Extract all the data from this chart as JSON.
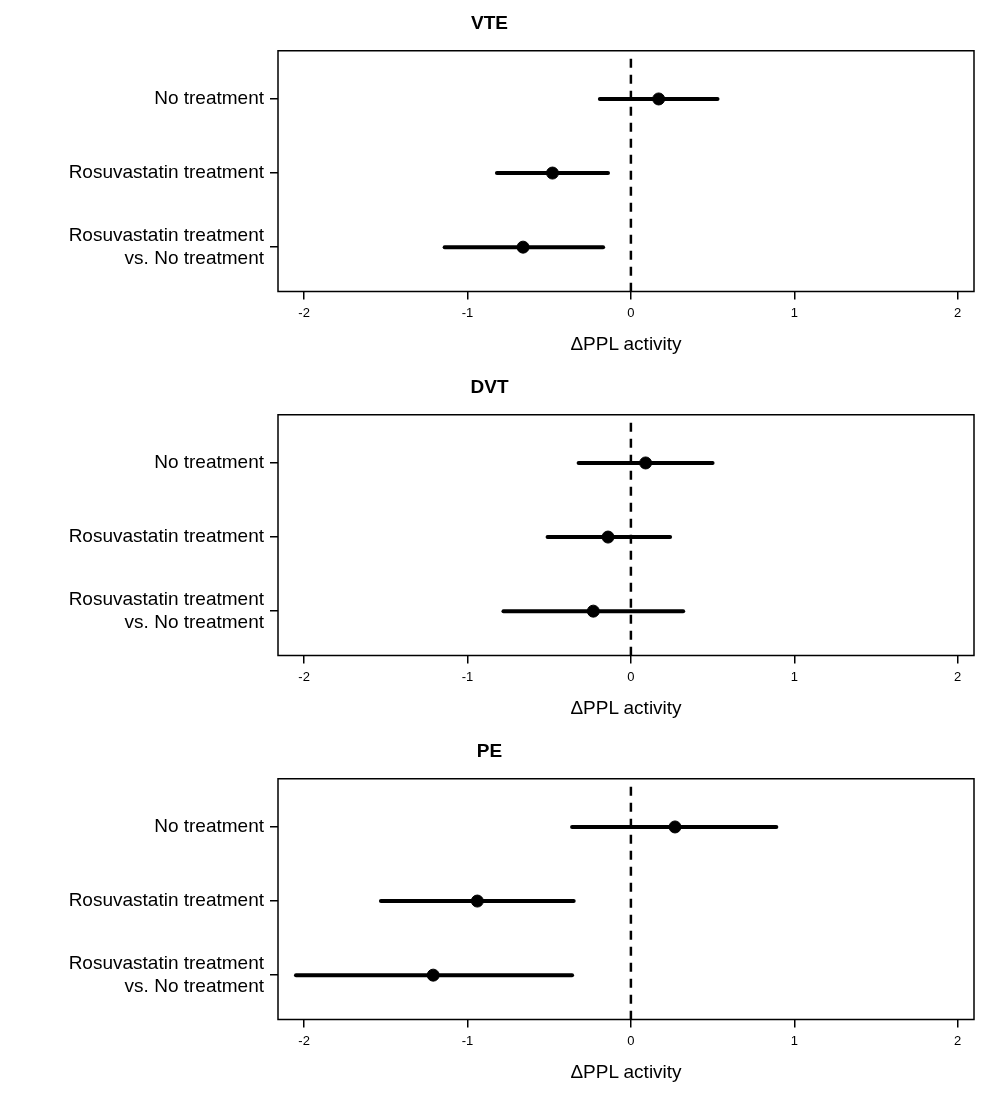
{
  "chart_data": [
    {
      "type": "scatter",
      "title": "VTE",
      "xlabel": "ΔPPL activity",
      "orientation": "horizontal",
      "categories": [
        "No treatment",
        "Rosuvastatin treatment",
        "Rosuvastatin treatment\nvs. No treatment"
      ],
      "color": "#000000",
      "marker": "circle",
      "values": [
        0.17,
        -0.48,
        -0.66
      ],
      "errors": [
        [
          -0.19,
          0.53
        ],
        [
          -0.82,
          -0.14
        ],
        [
          -1.14,
          -0.17
        ]
      ],
      "xlim": [
        -2.16,
        2.1
      ],
      "xticks": [
        -2,
        -1,
        0,
        1,
        2
      ],
      "grid": false,
      "legend": false,
      "ref_lines": [
        {
          "axis": "x",
          "value": 0,
          "line_style": "dashed",
          "color": "#000000"
        }
      ]
    },
    {
      "type": "scatter",
      "title": "DVT",
      "xlabel": "ΔPPL activity",
      "orientation": "horizontal",
      "categories": [
        "No treatment",
        "Rosuvastatin treatment",
        "Rosuvastatin treatment\nvs. No treatment"
      ],
      "color": "#000000",
      "marker": "circle",
      "values": [
        0.09,
        -0.14,
        -0.23
      ],
      "errors": [
        [
          -0.32,
          0.5
        ],
        [
          -0.51,
          0.24
        ],
        [
          -0.78,
          0.32
        ]
      ],
      "xlim": [
        -2.16,
        2.1
      ],
      "xticks": [
        -2,
        -1,
        0,
        1,
        2
      ],
      "grid": false,
      "legend": false,
      "ref_lines": [
        {
          "axis": "x",
          "value": 0,
          "line_style": "dashed",
          "color": "#000000"
        }
      ]
    },
    {
      "type": "scatter",
      "title": "PE",
      "xlabel": "ΔPPL activity",
      "orientation": "horizontal",
      "categories": [
        "No treatment",
        "Rosuvastatin treatment",
        "Rosuvastatin treatment\nvs. No treatment"
      ],
      "color": "#000000",
      "marker": "circle",
      "values": [
        0.27,
        -0.94,
        -1.21
      ],
      "errors": [
        [
          -0.36,
          0.89
        ],
        [
          -1.53,
          -0.35
        ],
        [
          -2.05,
          -0.36
        ]
      ],
      "xlim": [
        -2.16,
        2.1
      ],
      "xticks": [
        -2,
        -1,
        0,
        1,
        2
      ],
      "grid": false,
      "legend": false,
      "ref_lines": [
        {
          "axis": "x",
          "value": 0,
          "line_style": "dashed",
          "color": "#000000"
        }
      ]
    }
  ]
}
